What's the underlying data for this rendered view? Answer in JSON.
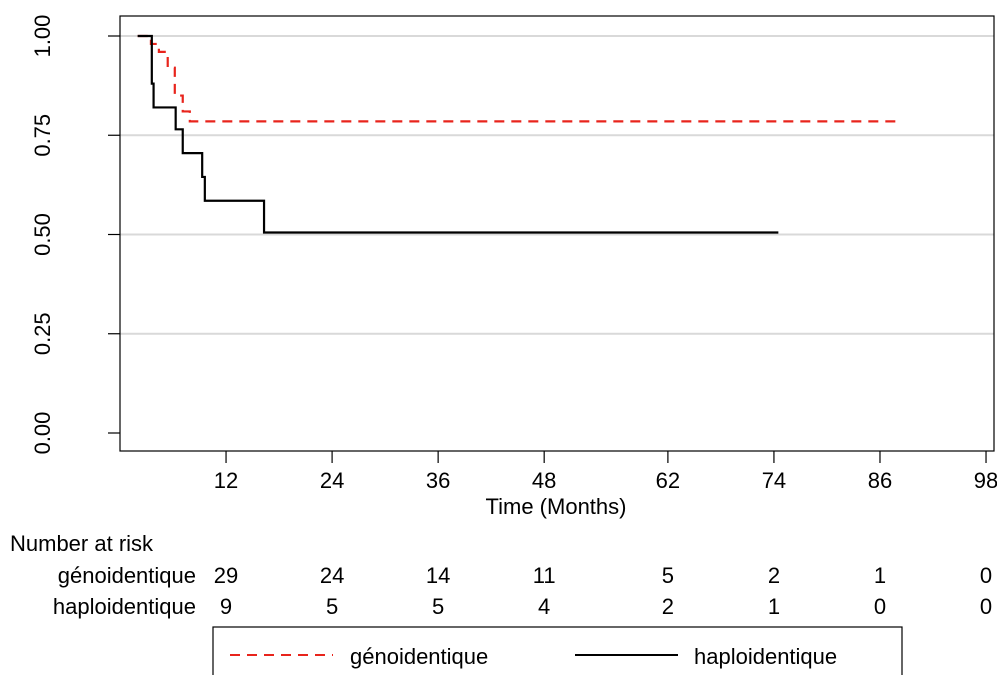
{
  "chart_data": {
    "type": "line",
    "title": "",
    "xlabel": "Time (Months)",
    "ylabel": "",
    "xlim": [
      0,
      98
    ],
    "ylim": [
      0,
      1
    ],
    "x_ticks": [
      12,
      24,
      36,
      48,
      62,
      74,
      86,
      98
    ],
    "y_ticks": [
      0.0,
      0.25,
      0.5,
      0.75,
      1.0
    ],
    "y_tick_labels": [
      "0.00",
      "0.25",
      "0.50",
      "0.75",
      "1.00"
    ],
    "grid": "horizontal",
    "legend_position": "bottom",
    "series": [
      {
        "name": "génoidentique",
        "color": "#e8241c",
        "dash": "dashed",
        "x": [
          2,
          3.5,
          4.4,
          5.4,
          6.2,
          7.1,
          7.9,
          88
        ],
        "y": [
          1.0,
          0.98,
          0.96,
          0.92,
          0.85,
          0.81,
          0.785,
          0.785
        ]
      },
      {
        "name": "haploidentique",
        "color": "#000000",
        "dash": "solid",
        "x": [
          2,
          3.6,
          3.8,
          6.3,
          7.1,
          9.3,
          9.6,
          16.3,
          74.5
        ],
        "y": [
          1.0,
          0.88,
          0.82,
          0.765,
          0.705,
          0.645,
          0.585,
          0.505,
          0.505
        ]
      }
    ],
    "risk_table": {
      "title": "Number at risk",
      "rows": [
        {
          "name": "génoidentique",
          "values": [
            "29",
            "24",
            "14",
            "11",
            "5",
            "2",
            "1",
            "0"
          ]
        },
        {
          "name": "haploidentique",
          "values": [
            "9",
            "5",
            "5",
            "4",
            "2",
            "1",
            "0",
            "0"
          ]
        }
      ]
    }
  }
}
